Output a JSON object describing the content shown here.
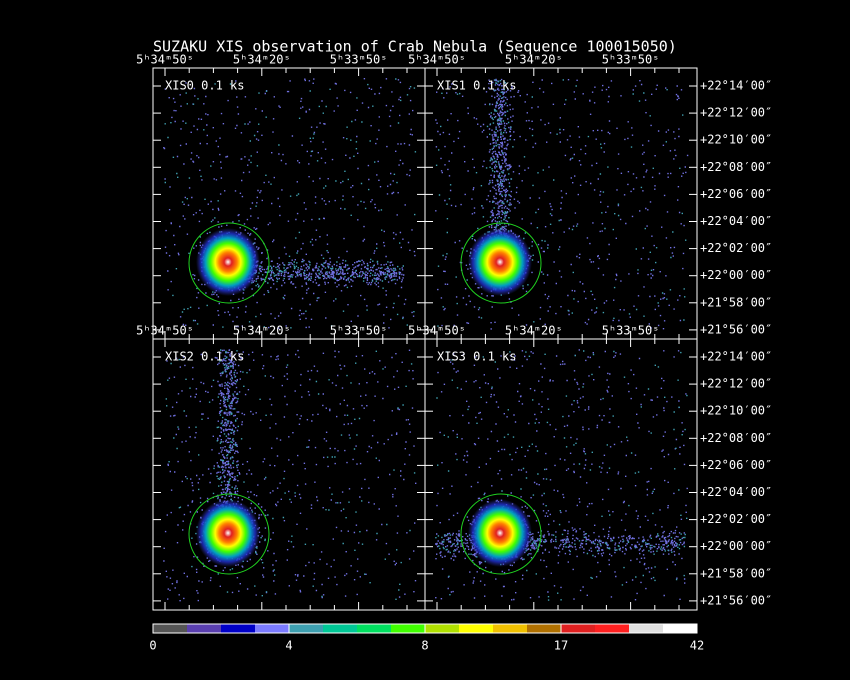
{
  "title": "SUZAKU XIS observation of Crab Nebula  (Sequence 100015050)",
  "panels": [
    {
      "label": "XIS0 0.1 ks",
      "ra_ticks": [
        "5ʰ34ᵐ50ˢ",
        "5ʰ34ᵐ20ˢ",
        "5ʰ33ᵐ50ˢ"
      ]
    },
    {
      "label": "XIS1 0.1 ks",
      "ra_ticks": [
        "5ʰ34ᵐ50ˢ",
        "5ʰ34ᵐ20ˢ",
        "5ʰ33ᵐ50ˢ"
      ]
    },
    {
      "label": "XIS2 0.1 ks",
      "ra_ticks": [
        "5ʰ34ᵐ50ˢ",
        "5ʰ34ᵐ20ˢ",
        "5ʰ33ᵐ50ˢ"
      ]
    },
    {
      "label": "XIS3 0.1 ks",
      "ra_ticks": [
        "5ʰ34ᵐ50ˢ",
        "5ʰ34ᵐ20ˢ",
        "5ʰ33ᵐ50ˢ"
      ]
    }
  ],
  "dec_ticks": [
    "+22°14′00″",
    "+22°12′00″",
    "+22°10′00″",
    "+22°08′00″",
    "+22°06′00″",
    "+22°04′00″",
    "+22°02′00″",
    "+22°00′00″",
    "+21°58′00″",
    "+21°56′00″"
  ],
  "colorbar": {
    "labels": [
      0,
      4,
      8,
      17,
      42
    ]
  }
}
